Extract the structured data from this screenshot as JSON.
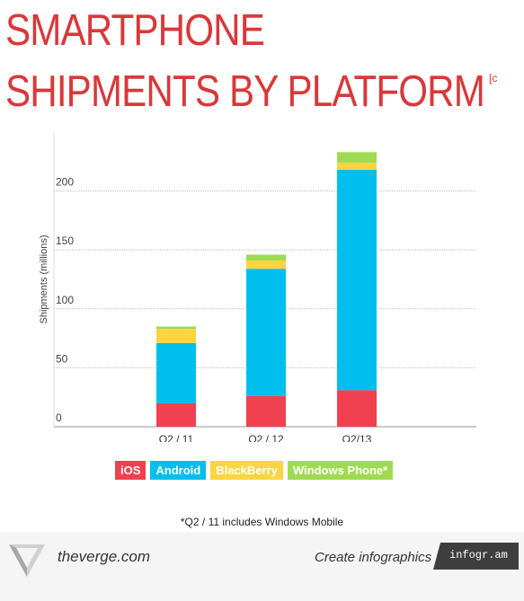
{
  "header": {
    "title_line1": "SMARTPHONE",
    "title_line2": "SHIPMENTS BY PLATFORM",
    "title_mark": "[c"
  },
  "chart_data": {
    "type": "bar",
    "stacked": true,
    "categories": [
      "Q2 / 11",
      "Q2 / 12",
      "Q2/13"
    ],
    "ylabel": "Shipments (millions)",
    "ylim": [
      0,
      250
    ],
    "yticks": [
      0,
      50,
      100,
      150,
      200
    ],
    "grid": true,
    "series": [
      {
        "name": "iOS",
        "color": "#f14050",
        "values": [
          20,
          26,
          31
        ]
      },
      {
        "name": "Android",
        "color": "#00bfef",
        "values": [
          51,
          108,
          187
        ]
      },
      {
        "name": "BlackBerry",
        "color": "#fdd540",
        "values": [
          12,
          7,
          6
        ]
      },
      {
        "name": "Windows Phone*",
        "color": "#9fdb52",
        "values": [
          2,
          5,
          9
        ]
      }
    ],
    "legend_position": "bottom"
  },
  "footnote": "*Q2 / 11 includes Windows Mobile",
  "footer": {
    "site": "theverge.com",
    "create": "Create infographics",
    "badge": "infogr.am"
  },
  "colors": {
    "title": "#d9383a",
    "grid": "#bdbdbd",
    "plot_bg": "#ffffff",
    "badge_bg": "#3e3e3e"
  }
}
